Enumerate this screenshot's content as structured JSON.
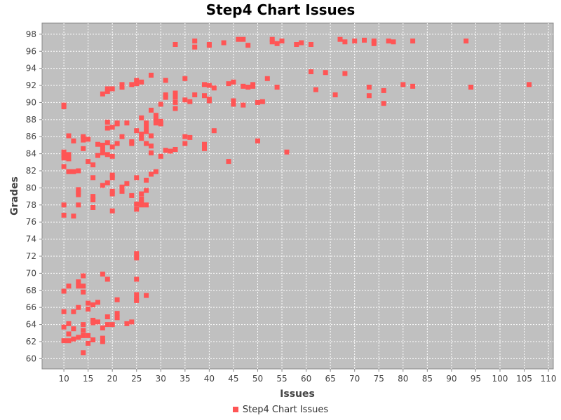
{
  "chart_data": {
    "type": "scatter",
    "title": "Step4 Chart Issues",
    "xlabel": "Issues",
    "ylabel": "Grades",
    "xlim": [
      5.5,
      111
    ],
    "ylim": [
      58.8,
      99.3
    ],
    "x_ticks": [
      10,
      15,
      20,
      25,
      30,
      35,
      40,
      45,
      50,
      55,
      60,
      65,
      70,
      75,
      80,
      85,
      90,
      95,
      100,
      105,
      110
    ],
    "y_ticks": [
      60,
      62,
      64,
      66,
      68,
      70,
      72,
      74,
      76,
      78,
      80,
      82,
      84,
      86,
      88,
      90,
      92,
      94,
      96,
      98
    ],
    "grid": true,
    "legend_position": "bottom",
    "colors": {
      "series": "#ff5555",
      "plot_background": "#c0c0c0",
      "grid": "#ffffff"
    },
    "series": [
      {
        "name": "Step4 Chart Issues",
        "points": [
          [
            10,
            89.7
          ],
          [
            10,
            89.5
          ],
          [
            10,
            84.2
          ],
          [
            10,
            83.8
          ],
          [
            10,
            83.5
          ],
          [
            10,
            82.5
          ],
          [
            10,
            78.0
          ],
          [
            10,
            76.8
          ],
          [
            10,
            67.9
          ],
          [
            10,
            65.5
          ],
          [
            10,
            63.7
          ],
          [
            10,
            62.1
          ],
          [
            11,
            86.1
          ],
          [
            11,
            83.9
          ],
          [
            11,
            83.4
          ],
          [
            11,
            81.9
          ],
          [
            11,
            68.5
          ],
          [
            11,
            64.1
          ],
          [
            11,
            62.9
          ],
          [
            11,
            62.1
          ],
          [
            12,
            85.5
          ],
          [
            12,
            81.9
          ],
          [
            12,
            76.7
          ],
          [
            12,
            65.5
          ],
          [
            12,
            63.5
          ],
          [
            12,
            62.3
          ],
          [
            13,
            82.0
          ],
          [
            13,
            79.8
          ],
          [
            13,
            79.5
          ],
          [
            13,
            79.2
          ],
          [
            13,
            78.0
          ],
          [
            13,
            69.0
          ],
          [
            13,
            68.5
          ],
          [
            13,
            66.0
          ],
          [
            13,
            62.5
          ],
          [
            14,
            86.0
          ],
          [
            14,
            85.6
          ],
          [
            14,
            84.6
          ],
          [
            14,
            69.7
          ],
          [
            14,
            68.5
          ],
          [
            14,
            67.8
          ],
          [
            14,
            64.0
          ],
          [
            14,
            63.3
          ],
          [
            14,
            62.7
          ],
          [
            14,
            60.7
          ],
          [
            15,
            85.7
          ],
          [
            15,
            83.1
          ],
          [
            15,
            66.5
          ],
          [
            15,
            65.8
          ],
          [
            15,
            62.7
          ],
          [
            15,
            61.8
          ],
          [
            16,
            82.7
          ],
          [
            16,
            81.2
          ],
          [
            16,
            79.0
          ],
          [
            16,
            78.6
          ],
          [
            16,
            77.7
          ],
          [
            16,
            66.3
          ],
          [
            16,
            64.5
          ],
          [
            16,
            64.2
          ],
          [
            16,
            62.2
          ],
          [
            17,
            85.1
          ],
          [
            17,
            83.8
          ],
          [
            17,
            66.6
          ],
          [
            17,
            64.3
          ],
          [
            18,
            91.0
          ],
          [
            18,
            85.0
          ],
          [
            18,
            84.5
          ],
          [
            18,
            84.1
          ],
          [
            18,
            80.3
          ],
          [
            18,
            69.9
          ],
          [
            18,
            63.6
          ],
          [
            18,
            62.4
          ],
          [
            18,
            62.0
          ],
          [
            19,
            91.6
          ],
          [
            19,
            91.3
          ],
          [
            19,
            87.7
          ],
          [
            19,
            87.0
          ],
          [
            19,
            85.3
          ],
          [
            19,
            83.9
          ],
          [
            19,
            80.6
          ],
          [
            19,
            69.3
          ],
          [
            19,
            64.9
          ],
          [
            19,
            64.0
          ],
          [
            20,
            91.6
          ],
          [
            20,
            87.1
          ],
          [
            20,
            84.8
          ],
          [
            20,
            83.7
          ],
          [
            20,
            81.5
          ],
          [
            20,
            81.2
          ],
          [
            20,
            79.6
          ],
          [
            20,
            79.3
          ],
          [
            20,
            77.3
          ],
          [
            20,
            64.0
          ],
          [
            21,
            87.6
          ],
          [
            21,
            87.5
          ],
          [
            21,
            85.2
          ],
          [
            21,
            66.9
          ],
          [
            21,
            65.3
          ],
          [
            21,
            64.8
          ],
          [
            22,
            92.1
          ],
          [
            22,
            91.8
          ],
          [
            22,
            86.0
          ],
          [
            22,
            80.1
          ],
          [
            22,
            79.6
          ],
          [
            23,
            87.6
          ],
          [
            23,
            80.5
          ],
          [
            23,
            64.1
          ],
          [
            24,
            92.1
          ],
          [
            24,
            85.4
          ],
          [
            24,
            85.2
          ],
          [
            24,
            79.1
          ],
          [
            24,
            64.3
          ],
          [
            25,
            92.6
          ],
          [
            25,
            92.2
          ],
          [
            25,
            86.7
          ],
          [
            25,
            81.2
          ],
          [
            25,
            78.1
          ],
          [
            25,
            77.5
          ],
          [
            25,
            72.3
          ],
          [
            25,
            71.8
          ],
          [
            25,
            69.3
          ],
          [
            25,
            67.5
          ],
          [
            25,
            67.0
          ],
          [
            25,
            66.8
          ],
          [
            26,
            92.4
          ],
          [
            26,
            88.2
          ],
          [
            26,
            86.3
          ],
          [
            26,
            85.8
          ],
          [
            26,
            79.3
          ],
          [
            26,
            78.7
          ],
          [
            26,
            78.3
          ],
          [
            26,
            78.0
          ],
          [
            27,
            87.6
          ],
          [
            27,
            87.1
          ],
          [
            27,
            86.6
          ],
          [
            27,
            85.2
          ],
          [
            27,
            80.9
          ],
          [
            27,
            79.7
          ],
          [
            27,
            78.0
          ],
          [
            27,
            67.4
          ],
          [
            28,
            93.2
          ],
          [
            28,
            89.1
          ],
          [
            28,
            86.1
          ],
          [
            28,
            84.9
          ],
          [
            28,
            84.1
          ],
          [
            28,
            81.6
          ],
          [
            29,
            88.5
          ],
          [
            29,
            88.0
          ],
          [
            29,
            87.6
          ],
          [
            29,
            81.9
          ],
          [
            30,
            89.8
          ],
          [
            30,
            87.8
          ],
          [
            30,
            87.5
          ],
          [
            30,
            83.7
          ],
          [
            31,
            92.6
          ],
          [
            31,
            90.9
          ],
          [
            31,
            90.6
          ],
          [
            31,
            84.4
          ],
          [
            32,
            84.3
          ],
          [
            33,
            96.8
          ],
          [
            33,
            91.1
          ],
          [
            33,
            90.6
          ],
          [
            33,
            90.0
          ],
          [
            33,
            89.3
          ],
          [
            33,
            84.5
          ],
          [
            35,
            92.8
          ],
          [
            35,
            90.3
          ],
          [
            35,
            86.0
          ],
          [
            35,
            85.2
          ],
          [
            36,
            90.1
          ],
          [
            36,
            85.9
          ],
          [
            37,
            97.2
          ],
          [
            37,
            96.5
          ],
          [
            37,
            90.9
          ],
          [
            39,
            92.1
          ],
          [
            39,
            90.8
          ],
          [
            39,
            85.1
          ],
          [
            39,
            84.6
          ],
          [
            40,
            96.8
          ],
          [
            40,
            96.7
          ],
          [
            40,
            92.0
          ],
          [
            40,
            90.4
          ],
          [
            40,
            90.2
          ],
          [
            41,
            91.7
          ],
          [
            41,
            86.7
          ],
          [
            43,
            97.0
          ],
          [
            44,
            92.2
          ],
          [
            44,
            83.1
          ],
          [
            45,
            92.4
          ],
          [
            45,
            90.2
          ],
          [
            45,
            89.8
          ],
          [
            46,
            97.4
          ],
          [
            47,
            97.4
          ],
          [
            47,
            91.9
          ],
          [
            47,
            89.7
          ],
          [
            48,
            96.7
          ],
          [
            48,
            91.8
          ],
          [
            49,
            92.1
          ],
          [
            49,
            91.9
          ],
          [
            50,
            90.0
          ],
          [
            50,
            85.5
          ],
          [
            51,
            90.1
          ],
          [
            52,
            92.8
          ],
          [
            53,
            97.4
          ],
          [
            53,
            97.1
          ],
          [
            54,
            96.9
          ],
          [
            54,
            91.8
          ],
          [
            55,
            97.2
          ],
          [
            56,
            84.2
          ],
          [
            58,
            96.8
          ],
          [
            59,
            97.0
          ],
          [
            61,
            96.8
          ],
          [
            61,
            93.6
          ],
          [
            62,
            91.5
          ],
          [
            64,
            93.5
          ],
          [
            66,
            90.9
          ],
          [
            67,
            97.4
          ],
          [
            68,
            97.1
          ],
          [
            68,
            93.4
          ],
          [
            70,
            97.2
          ],
          [
            72,
            97.3
          ],
          [
            73,
            91.8
          ],
          [
            73,
            90.8
          ],
          [
            74,
            97.2
          ],
          [
            74,
            96.9
          ],
          [
            76,
            91.4
          ],
          [
            76,
            89.9
          ],
          [
            77,
            97.2
          ],
          [
            78,
            97.1
          ],
          [
            80,
            92.1
          ],
          [
            82,
            97.2
          ],
          [
            82,
            91.9
          ],
          [
            93,
            97.2
          ],
          [
            94,
            91.8
          ],
          [
            106,
            92.1
          ]
        ]
      }
    ]
  }
}
